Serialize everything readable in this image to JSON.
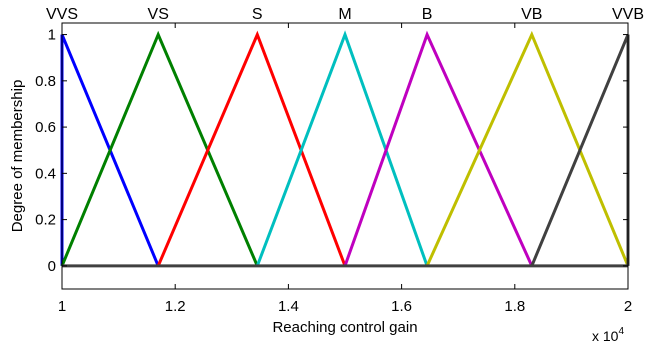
{
  "chart_data": {
    "type": "line",
    "title": "",
    "xlabel": "Reaching control gain",
    "ylabel": "Degree of membership",
    "x_scale_note": "x 10",
    "x_scale_exponent": "4",
    "xlim": [
      1,
      2
    ],
    "ylim": [
      -0.1,
      1.05
    ],
    "x_ticks": [
      1,
      1.2,
      1.4,
      1.6,
      1.8,
      2
    ],
    "x_tick_labels": [
      "1",
      "1.2",
      "1.4",
      "1.6",
      "1.8",
      "2"
    ],
    "y_ticks": [
      0,
      0.2,
      0.4,
      0.6,
      0.8,
      1
    ],
    "y_tick_labels": [
      "0",
      "0.2",
      "0.4",
      "0.6",
      "0.8",
      "1"
    ],
    "grid": false,
    "legend": "none",
    "series": [
      {
        "name": "VVS",
        "color": "#0000ff",
        "x": [
          1,
          1,
          1.17
        ],
        "y": [
          0,
          1,
          0
        ]
      },
      {
        "name": "VS",
        "color": "#008000",
        "x": [
          1,
          1.17,
          1.345
        ],
        "y": [
          0,
          1,
          0
        ]
      },
      {
        "name": "S",
        "color": "#ff0000",
        "x": [
          1.17,
          1.345,
          1.5
        ],
        "y": [
          0,
          1,
          0
        ]
      },
      {
        "name": "M",
        "color": "#00bfbf",
        "x": [
          1.345,
          1.5,
          1.645
        ],
        "y": [
          0,
          1,
          0
        ]
      },
      {
        "name": "B",
        "color": "#bf00bf",
        "x": [
          1.5,
          1.645,
          1.83
        ],
        "y": [
          0,
          1,
          0
        ]
      },
      {
        "name": "VB",
        "color": "#bfbf00",
        "x": [
          1.645,
          1.83,
          2
        ],
        "y": [
          0,
          1,
          0
        ]
      },
      {
        "name": "VVB",
        "color": "#404040",
        "x": [
          1.83,
          2,
          2
        ],
        "y": [
          0,
          1,
          0
        ]
      }
    ]
  }
}
